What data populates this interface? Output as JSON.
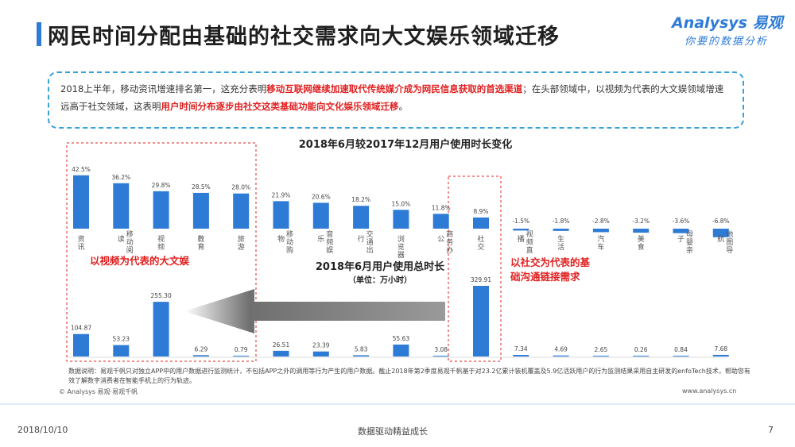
{
  "header": {
    "title": "网民时间分配由基础的社交需求向大文娱乐领域迁移",
    "logo_top": "Analysys 易观",
    "logo_bottom": "你要的数据分析"
  },
  "summary": {
    "part1": "2018上半年，移动资讯增速排名第一，这充分表明",
    "part2": "移动互联网继续加速取代传统媒介成为网民信息获取的首选渠道",
    "part3": "；在头部领域中，以视频为代表的大文娱领域增速远高于社交领域，这表明",
    "part4": "用户时间分布逐步由社交这类基础功能向文化娱乐领域迁移",
    "part5": "。"
  },
  "annotations": {
    "left_label": "以视频为代表的大文娱",
    "right_label_line1": "以社交为代表的基",
    "right_label_line2": "础沟通链接需求"
  },
  "colors": {
    "bar": "#2e7bd6",
    "accent_red": "#e02020",
    "arrow": "#8c8c8c",
    "box_border": "#3aa0d8"
  },
  "chart_data": [
    {
      "type": "bar",
      "title": "2018年6月较2017年12月用户使用时长变化",
      "categories": [
        "资讯",
        "移动阅读",
        "视频",
        "教育",
        "旅游",
        "移动购物",
        "音频娱乐",
        "交通出行",
        "浏览器",
        "商务办公",
        "社交",
        "视频直播",
        "生活",
        "汽车",
        "美食",
        "母婴亲子",
        "地图导航"
      ],
      "tick_labels": [
        "资讯",
        "读",
        "视频",
        "教育",
        "旅游",
        "物",
        "乐",
        "行",
        "浏览器",
        "公",
        "社交",
        "播",
        "生活",
        "汽车",
        "美食",
        "子",
        "航"
      ],
      "extra_tick_text": [
        "移动阅",
        "移动购",
        "音频娱",
        "交通出",
        "商务办",
        "视频直",
        "母婴亲",
        "地图导"
      ],
      "values": [
        42.5,
        36.2,
        29.8,
        28.5,
        28.0,
        21.9,
        20.6,
        18.2,
        15.0,
        11.8,
        8.9,
        -1.5,
        -1.8,
        -2.8,
        -3.2,
        -3.6,
        -6.8
      ],
      "value_labels": [
        "42.5%",
        "36.2%",
        "29.8%",
        "28.5%",
        "28.0%",
        "21.9%",
        "20.6%",
        "18.2%",
        "15.0%",
        "11.8%",
        "8.9%",
        "-1.5%",
        "-1.8%",
        "-2.8%",
        "-3.2%",
        "-3.6%",
        "-6.8%"
      ],
      "ylim": [
        -7,
        43
      ]
    },
    {
      "type": "bar",
      "title": "2018年6月用户使用总时长",
      "subtitle": "（单位：万小时）",
      "categories": [
        "资讯",
        "移动阅读",
        "视频",
        "教育",
        "旅游",
        "移动购物",
        "音频娱乐",
        "交通出行",
        "浏览器",
        "商务办公",
        "社交",
        "视频直播",
        "生活",
        "汽车",
        "美食",
        "母婴亲子",
        "地图导航"
      ],
      "values": [
        104.87,
        53.23,
        255.3,
        6.29,
        0.79,
        26.51,
        23.39,
        5.83,
        55.63,
        3.08,
        329.91,
        7.34,
        4.69,
        2.65,
        0.26,
        0.84,
        7.68
      ],
      "value_labels": [
        "104.87",
        "53.23",
        "255.30",
        "6.29",
        "0.79",
        "26.51",
        "23.39",
        "5.83",
        "55.63",
        "3.08",
        "329.91",
        "7.34",
        "4.69",
        "2.65",
        "0.26",
        "0.84",
        "7.68"
      ],
      "ylim": [
        0,
        330
      ]
    }
  ],
  "footer": {
    "note": "数据说明：易观千帆只对独立APP中的用户数据进行监测统计，不包括APP之外的调用等行为产生的用户数据。截止2018年第2季度易观千帆基于对23.2亿累计装机覆盖及5.9亿活跃用户的行为监测结果采用自主研发的enfoTech技术，帮助您有效了解数字消费者在智能手机上的行为轨迹。",
    "copyright": "© Analysys 易观·易观千帆",
    "site": "www.analysys.cn",
    "date": "2018/10/10",
    "slogan": "数据驱动精益成长",
    "page": "7"
  }
}
